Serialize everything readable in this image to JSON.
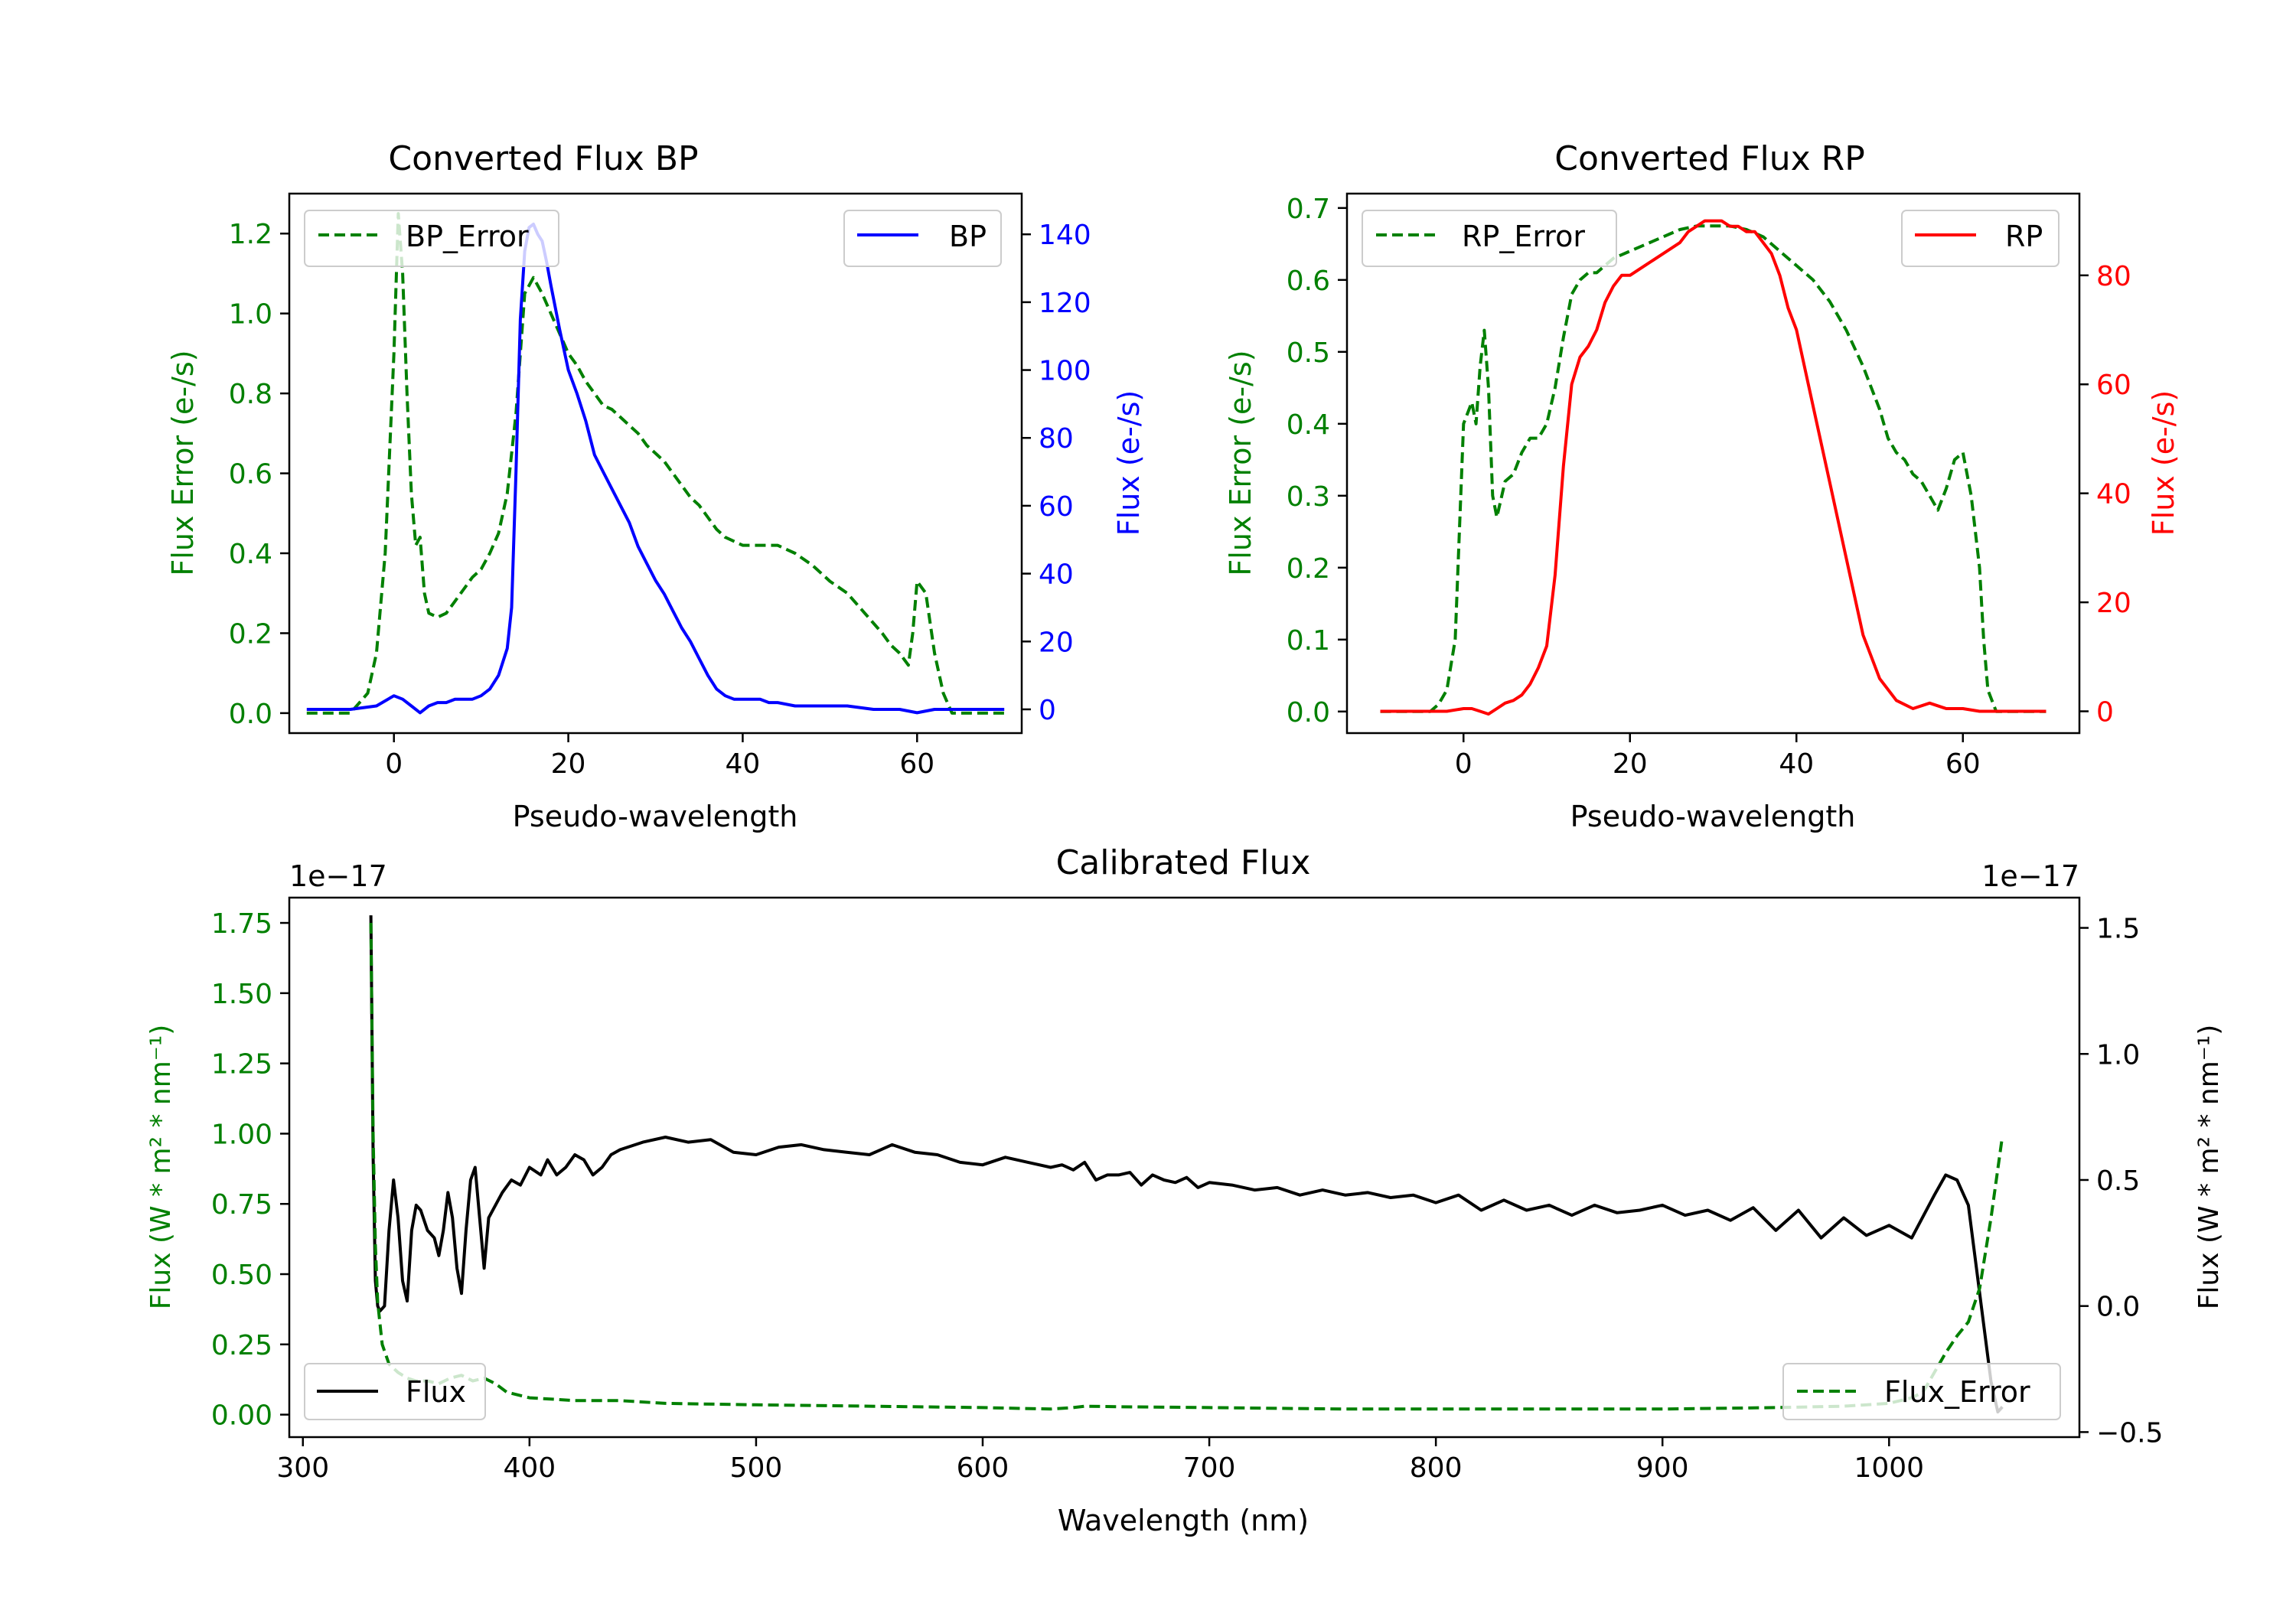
{
  "colors": {
    "bp": "#0000ff",
    "rp": "#ff0000",
    "error": "#008000",
    "flux": "#000000",
    "axis": "#000000",
    "background": "#ffffff"
  },
  "chart_data": [
    {
      "id": "bp",
      "type": "line",
      "title": "Converted Flux BP",
      "xlabel": "Pseudo-wavelength",
      "ylabel_left": "Flux Error (e-/s)",
      "ylabel_right": "Flux (e-/s)",
      "xlim": [
        -12,
        72
      ],
      "ylim_left": [
        -0.05,
        1.3
      ],
      "ylim_right": [
        -7,
        152
      ],
      "xticks": [
        0,
        20,
        40,
        60
      ],
      "yticks_left": [
        0.0,
        0.2,
        0.4,
        0.6,
        0.8,
        1.0,
        1.2
      ],
      "yticks_right": [
        0,
        20,
        40,
        60,
        80,
        100,
        120,
        140
      ],
      "legend_left": "top-left",
      "legend_right": "top-right",
      "series": [
        {
          "name": "BP_Error",
          "axis": "left",
          "style": "dashed",
          "color": "#008000",
          "x": [
            -10,
            -5,
            -3,
            -2,
            -1,
            0,
            0.5,
            1,
            1.5,
            2,
            2.5,
            3,
            3.5,
            4,
            5,
            6,
            7,
            8,
            9,
            10,
            11,
            12,
            13,
            14,
            15,
            16,
            17,
            18,
            19,
            20,
            21,
            22,
            23,
            24,
            25,
            26,
            27,
            28,
            29,
            30,
            31,
            32,
            33,
            34,
            35,
            36,
            37,
            38,
            39,
            40,
            42,
            44,
            46,
            48,
            50,
            52,
            54,
            56,
            57,
            58,
            59,
            59.5,
            60,
            61,
            62,
            63,
            64,
            66,
            68,
            70
          ],
          "y": [
            0.0,
            0.0,
            0.05,
            0.15,
            0.4,
            0.9,
            1.25,
            1.1,
            0.8,
            0.55,
            0.42,
            0.44,
            0.3,
            0.25,
            0.24,
            0.25,
            0.28,
            0.31,
            0.34,
            0.36,
            0.4,
            0.45,
            0.55,
            0.75,
            1.05,
            1.09,
            1.05,
            1.0,
            0.95,
            0.9,
            0.87,
            0.83,
            0.8,
            0.77,
            0.76,
            0.74,
            0.72,
            0.7,
            0.67,
            0.65,
            0.63,
            0.6,
            0.57,
            0.54,
            0.52,
            0.49,
            0.46,
            0.44,
            0.43,
            0.42,
            0.42,
            0.42,
            0.4,
            0.37,
            0.33,
            0.3,
            0.25,
            0.2,
            0.17,
            0.15,
            0.12,
            0.2,
            0.33,
            0.3,
            0.15,
            0.05,
            0.0,
            0.0,
            0.0,
            0.0
          ]
        },
        {
          "name": "BP",
          "axis": "right",
          "style": "solid",
          "color": "#0000ff",
          "x": [
            -10,
            -5,
            -2,
            0,
            1,
            2,
            3,
            4,
            5,
            6,
            7,
            8,
            9,
            10,
            11,
            12,
            13,
            13.5,
            14,
            14.5,
            15,
            15.5,
            16,
            16.5,
            17,
            17.5,
            18,
            19,
            20,
            21,
            22,
            23,
            24,
            25,
            26,
            27,
            28,
            29,
            30,
            31,
            32,
            33,
            34,
            35,
            36,
            37,
            38,
            39,
            40,
            41,
            42,
            43,
            44,
            46,
            48,
            50,
            52,
            55,
            58,
            60,
            62,
            65,
            68,
            70
          ],
          "y": [
            0,
            0,
            1,
            4,
            3,
            1,
            -1,
            1,
            2,
            2,
            3,
            3,
            3,
            4,
            6,
            10,
            18,
            30,
            70,
            115,
            135,
            142,
            143,
            140,
            138,
            132,
            125,
            112,
            100,
            93,
            85,
            75,
            70,
            65,
            60,
            55,
            48,
            43,
            38,
            34,
            29,
            24,
            20,
            15,
            10,
            6,
            4,
            3,
            3,
            3,
            3,
            2,
            2,
            1,
            1,
            1,
            1,
            0,
            0,
            -1,
            0,
            0,
            0,
            0
          ]
        }
      ]
    },
    {
      "id": "rp",
      "type": "line",
      "title": "Converted Flux RP",
      "xlabel": "Pseudo-wavelength",
      "ylabel_left": "Flux Error (e-/s)",
      "ylabel_right": "Flux (e-/s)",
      "xlim": [
        -14,
        74
      ],
      "ylim_left": [
        -0.03,
        0.72
      ],
      "ylim_right": [
        -4,
        95
      ],
      "xticks": [
        0,
        20,
        40,
        60
      ],
      "yticks_left": [
        0.0,
        0.1,
        0.2,
        0.3,
        0.4,
        0.5,
        0.6,
        0.7
      ],
      "yticks_right": [
        0,
        20,
        40,
        60,
        80
      ],
      "legend_left": "top-left",
      "legend_right": "top-right",
      "series": [
        {
          "name": "RP_Error",
          "axis": "left",
          "style": "dashed",
          "color": "#008000",
          "x": [
            -10,
            -6,
            -4,
            -3,
            -2,
            -1,
            0,
            1,
            1.5,
            2,
            2.5,
            3,
            3.5,
            4,
            5,
            6,
            7,
            8,
            9,
            10,
            11,
            12,
            13,
            14,
            15,
            16,
            18,
            20,
            22,
            24,
            26,
            28,
            30,
            32,
            34,
            36,
            38,
            40,
            42,
            44,
            46,
            48,
            50,
            51,
            52,
            53,
            54,
            55,
            56,
            57,
            58,
            59,
            60,
            61,
            62,
            62.5,
            63,
            64,
            66,
            68,
            70
          ],
          "y": [
            0.0,
            0.0,
            0.0,
            0.01,
            0.03,
            0.1,
            0.4,
            0.43,
            0.4,
            0.48,
            0.53,
            0.45,
            0.3,
            0.27,
            0.32,
            0.33,
            0.36,
            0.38,
            0.38,
            0.4,
            0.45,
            0.52,
            0.58,
            0.6,
            0.61,
            0.61,
            0.63,
            0.64,
            0.65,
            0.66,
            0.67,
            0.675,
            0.675,
            0.675,
            0.67,
            0.66,
            0.64,
            0.62,
            0.6,
            0.57,
            0.53,
            0.48,
            0.42,
            0.38,
            0.36,
            0.35,
            0.33,
            0.32,
            0.3,
            0.28,
            0.31,
            0.35,
            0.36,
            0.3,
            0.2,
            0.1,
            0.03,
            0.0,
            0.0,
            0.0,
            0.0
          ]
        },
        {
          "name": "RP",
          "axis": "right",
          "style": "solid",
          "color": "#ff0000",
          "x": [
            -10,
            -6,
            -2,
            0,
            1,
            2,
            3,
            4,
            5,
            6,
            7,
            8,
            9,
            10,
            11,
            12,
            13,
            14,
            15,
            16,
            17,
            18,
            19,
            20,
            22,
            24,
            26,
            27,
            28,
            29,
            30,
            31,
            32,
            33,
            34,
            35,
            36,
            37,
            38,
            39,
            40,
            42,
            44,
            46,
            48,
            50,
            52,
            54,
            56,
            58,
            60,
            62,
            64,
            66,
            68,
            70
          ],
          "y": [
            0,
            0,
            0,
            0.5,
            0.5,
            0,
            -0.5,
            0.5,
            1.5,
            2,
            3,
            5,
            8,
            12,
            25,
            45,
            60,
            65,
            67,
            70,
            75,
            78,
            80,
            80,
            82,
            84,
            86,
            88,
            89,
            90,
            90,
            90,
            89,
            89,
            88,
            88,
            86,
            84,
            80,
            74,
            70,
            56,
            42,
            28,
            14,
            6,
            2,
            0.5,
            1.5,
            0.5,
            0.5,
            0,
            0,
            0,
            0,
            0
          ]
        }
      ]
    },
    {
      "id": "calibrated",
      "type": "line",
      "title": "Calibrated Flux",
      "xlabel": "Wavelength (nm)",
      "ylabel_left": "Flux (W * m² * nm⁻¹)",
      "ylabel_right": "Flux (W * m² * nm⁻¹)",
      "offset_left": "1e−17",
      "offset_right": "1e−17",
      "xlim": [
        294,
        1084
      ],
      "ylim_left": [
        -0.08,
        1.84
      ],
      "ylim_right": [
        -0.52,
        1.62
      ],
      "xticks": [
        300,
        400,
        500,
        600,
        700,
        800,
        900,
        1000
      ],
      "yticks_left": [
        0.0,
        0.25,
        0.5,
        0.75,
        1.0,
        1.25,
        1.5,
        1.75
      ],
      "ytick_labels_left": [
        "0.00",
        "0.25",
        "0.50",
        "0.75",
        "1.00",
        "1.25",
        "1.50",
        "1.75"
      ],
      "yticks_right": [
        -0.5,
        0.0,
        0.5,
        1.0,
        1.5
      ],
      "ytick_labels_right": [
        "−0.5",
        "0.0",
        "0.5",
        "1.0",
        "1.5"
      ],
      "legend_flux": "bottom-left",
      "legend_error": "bottom-right",
      "series": [
        {
          "name": "Flux",
          "axis": "right",
          "style": "solid",
          "color": "#000000",
          "x": [
            330,
            331,
            332,
            333,
            334,
            336,
            338,
            340,
            342,
            344,
            346,
            348,
            350,
            352,
            355,
            358,
            360,
            362,
            364,
            366,
            368,
            370,
            372,
            374,
            376,
            378,
            380,
            382,
            385,
            388,
            392,
            396,
            400,
            405,
            408,
            412,
            416,
            420,
            424,
            428,
            432,
            436,
            440,
            450,
            460,
            470,
            480,
            490,
            500,
            510,
            520,
            530,
            540,
            550,
            560,
            570,
            580,
            590,
            600,
            610,
            620,
            630,
            635,
            640,
            645,
            650,
            655,
            660,
            665,
            670,
            675,
            680,
            685,
            690,
            695,
            700,
            710,
            720,
            730,
            740,
            750,
            760,
            770,
            780,
            790,
            800,
            810,
            820,
            830,
            840,
            850,
            860,
            870,
            880,
            890,
            900,
            910,
            920,
            930,
            940,
            950,
            960,
            970,
            980,
            990,
            1000,
            1010,
            1020,
            1025,
            1030,
            1035,
            1040,
            1045,
            1048,
            1050
          ],
          "y": [
            1.55,
            0.6,
            0.1,
            0.0,
            -0.02,
            0.0,
            0.3,
            0.5,
            0.35,
            0.1,
            0.02,
            0.3,
            0.4,
            0.38,
            0.3,
            0.27,
            0.2,
            0.3,
            0.45,
            0.35,
            0.15,
            0.05,
            0.3,
            0.5,
            0.55,
            0.35,
            0.15,
            0.35,
            0.4,
            0.45,
            0.5,
            0.48,
            0.55,
            0.52,
            0.58,
            0.52,
            0.55,
            0.6,
            0.58,
            0.52,
            0.55,
            0.6,
            0.62,
            0.65,
            0.67,
            0.65,
            0.66,
            0.61,
            0.6,
            0.63,
            0.64,
            0.62,
            0.61,
            0.6,
            0.64,
            0.61,
            0.6,
            0.57,
            0.56,
            0.59,
            0.57,
            0.55,
            0.56,
            0.54,
            0.57,
            0.5,
            0.52,
            0.52,
            0.53,
            0.48,
            0.52,
            0.5,
            0.49,
            0.51,
            0.47,
            0.49,
            0.48,
            0.46,
            0.47,
            0.44,
            0.46,
            0.44,
            0.45,
            0.43,
            0.44,
            0.41,
            0.44,
            0.38,
            0.42,
            0.38,
            0.4,
            0.36,
            0.4,
            0.37,
            0.38,
            0.4,
            0.36,
            0.38,
            0.34,
            0.39,
            0.3,
            0.38,
            0.27,
            0.35,
            0.28,
            0.32,
            0.27,
            0.44,
            0.52,
            0.5,
            0.4,
            0.05,
            -0.3,
            -0.42,
            -0.4
          ]
        },
        {
          "name": "Flux_Error",
          "axis": "left",
          "style": "dashed",
          "color": "#008000",
          "x": [
            330,
            331,
            332,
            333,
            335,
            338,
            342,
            346,
            350,
            355,
            360,
            365,
            370,
            375,
            380,
            385,
            390,
            400,
            410,
            420,
            440,
            460,
            500,
            550,
            600,
            630,
            640,
            645,
            660,
            700,
            760,
            800,
            850,
            900,
            950,
            980,
            1000,
            1010,
            1015,
            1020,
            1025,
            1030,
            1035,
            1040,
            1045,
            1050
          ],
          "y": [
            1.75,
            1.0,
            0.6,
            0.4,
            0.25,
            0.18,
            0.15,
            0.13,
            0.12,
            0.12,
            0.11,
            0.13,
            0.14,
            0.12,
            0.13,
            0.11,
            0.08,
            0.06,
            0.055,
            0.05,
            0.05,
            0.04,
            0.035,
            0.03,
            0.025,
            0.02,
            0.025,
            0.03,
            0.028,
            0.025,
            0.02,
            0.02,
            0.02,
            0.02,
            0.025,
            0.03,
            0.04,
            0.06,
            0.08,
            0.15,
            0.22,
            0.28,
            0.33,
            0.45,
            0.7,
            0.99
          ]
        }
      ]
    }
  ]
}
